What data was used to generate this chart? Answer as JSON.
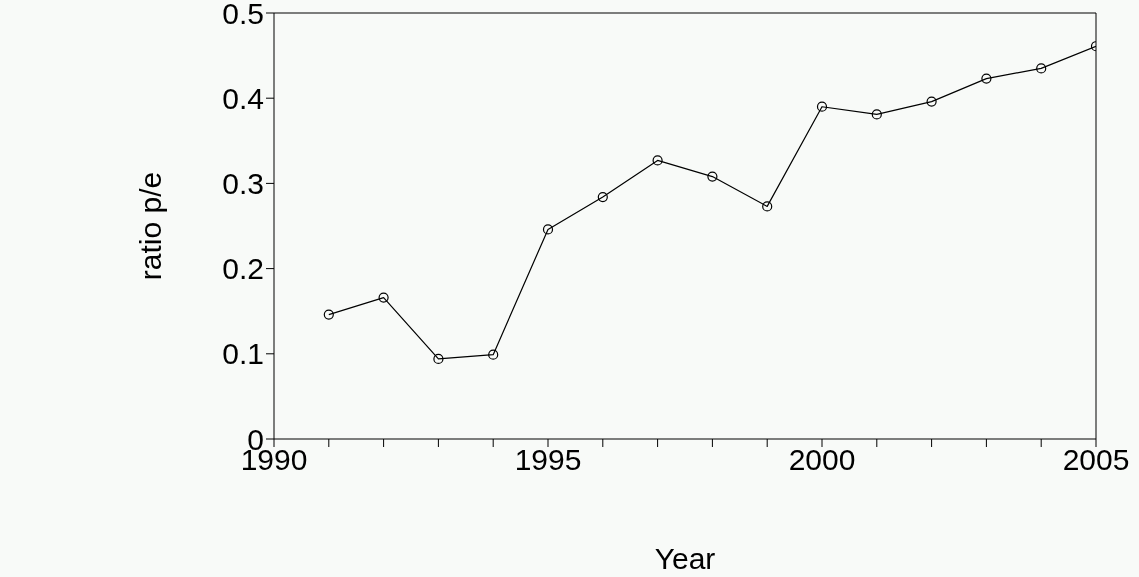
{
  "chart_data": {
    "type": "line",
    "xlabel": "Year",
    "ylabel": "ratio  p/e",
    "x": [
      1991,
      1992,
      1993,
      1994,
      1995,
      1996,
      1997,
      1998,
      1999,
      2000,
      2001,
      2002,
      2003,
      2004,
      2005
    ],
    "series": [
      {
        "color": "#000000",
        "values": [
          0.146,
          0.166,
          0.094,
          0.099,
          0.246,
          0.284,
          0.327,
          0.308,
          0.273,
          0.39,
          0.381,
          0.396,
          0.423,
          0.435,
          0.461
        ]
      }
    ],
    "xlim": [
      1990,
      2005
    ],
    "xticks": [
      1990,
      {
        "value": 1991,
        "label": null
      },
      {
        "value": 1992,
        "label": null
      },
      {
        "value": 1993,
        "label": null
      },
      {
        "value": 1994,
        "label": null
      },
      1995,
      {
        "value": 1996,
        "label": null
      },
      {
        "value": 1997,
        "label": null
      },
      {
        "value": 1998,
        "label": null
      },
      {
        "value": 1999,
        "label": null
      },
      2000,
      {
        "value": 2001,
        "label": null
      },
      {
        "value": 2002,
        "label": null
      },
      {
        "value": 2003,
        "label": null
      },
      {
        "value": 2004,
        "label": null
      },
      2005
    ],
    "ylim": [
      0,
      0.5
    ],
    "yticks": [
      0,
      0.1,
      0.2,
      0.3,
      0.4,
      0.5
    ],
    "marker": "circle",
    "line_style": "solid",
    "grid": false,
    "legend": false
  }
}
